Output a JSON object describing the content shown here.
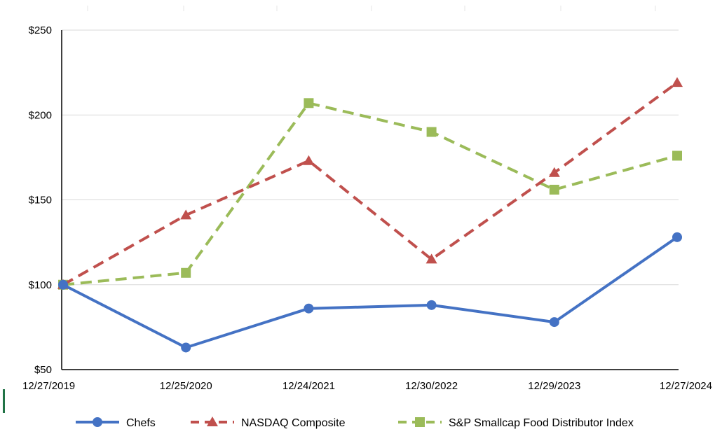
{
  "chart_data": {
    "type": "line",
    "title": "",
    "xlabel": "",
    "ylabel": "",
    "categories": [
      "12/27/2019",
      "12/25/2020",
      "12/24/2021",
      "12/30/2022",
      "12/29/2023",
      "12/27/2024"
    ],
    "ylim": [
      50,
      250
    ],
    "yticks": [
      50,
      100,
      150,
      200,
      250
    ],
    "ytick_labels": [
      "$50",
      "$100",
      "$150",
      "$200",
      "$250"
    ],
    "grid": true,
    "legend_position": "bottom",
    "series": [
      {
        "name": "Chefs",
        "values": [
          100,
          63,
          86,
          88,
          78,
          128
        ],
        "color": "#4472C4",
        "line_style": "solid",
        "marker": "circle"
      },
      {
        "name": "NASDAQ Composite",
        "values": [
          100,
          141,
          173,
          115,
          166,
          219
        ],
        "color": "#C0504D",
        "line_style": "dashed",
        "marker": "triangle"
      },
      {
        "name": "S&P Smallcap Food Distributor Index",
        "values": [
          100,
          107,
          207,
          190,
          156,
          176
        ],
        "color": "#9BBB59",
        "line_style": "dashed",
        "marker": "square"
      }
    ]
  }
}
